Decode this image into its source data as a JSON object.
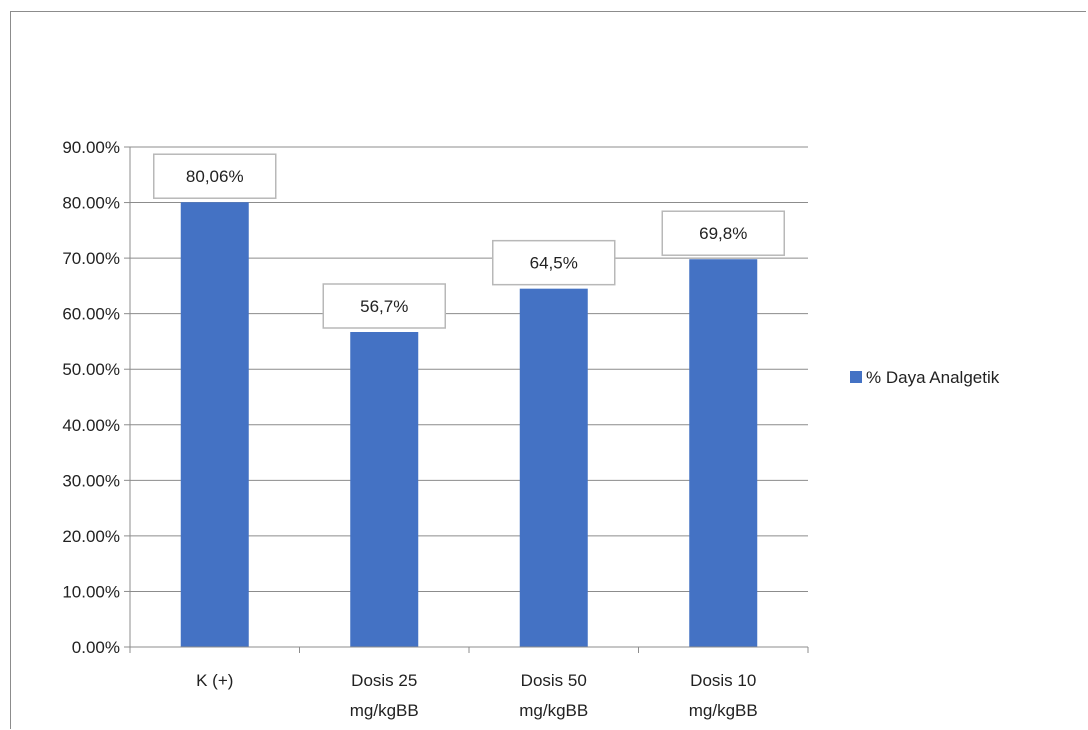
{
  "chart_data": {
    "type": "bar",
    "categories": [
      [
        "K (+)"
      ],
      [
        "Dosis 25",
        "mg/kgBB"
      ],
      [
        "Dosis 50",
        "mg/kgBB"
      ],
      [
        "Dosis 10",
        "mg/kgBB"
      ]
    ],
    "series": [
      {
        "name": "% Daya Analgetik",
        "values": [
          80.06,
          56.7,
          64.5,
          69.8
        ],
        "data_labels": [
          "80,06%",
          "56,7%",
          "64,5%",
          "69,8%"
        ],
        "color": "#4472C4"
      }
    ],
    "ylim": [
      0,
      90
    ],
    "y_ticks": [
      "0.00%",
      "10.00%",
      "20.00%",
      "30.00%",
      "40.00%",
      "50.00%",
      "60.00%",
      "70.00%",
      "80.00%",
      "90.00%"
    ],
    "gridlines": true,
    "legend_position": "right"
  }
}
